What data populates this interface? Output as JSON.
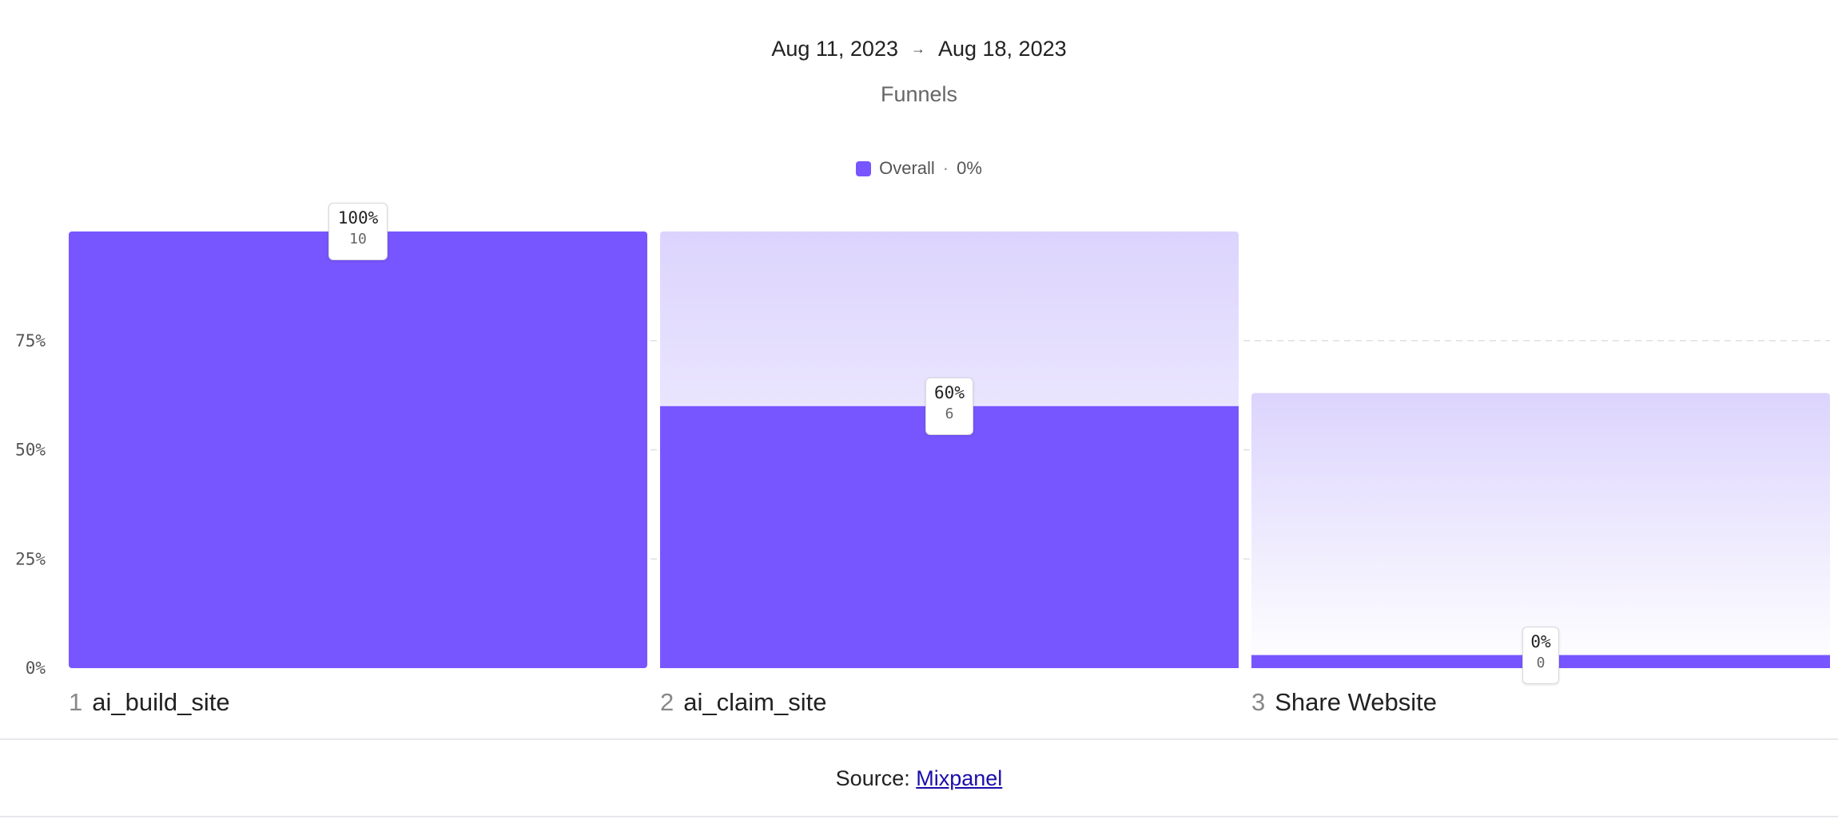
{
  "header": {
    "date_start": "Aug 11, 2023",
    "date_arrow": "→",
    "date_end": "Aug 18, 2023",
    "subtitle": "Funnels"
  },
  "legend": {
    "label": "Overall",
    "separator": "·",
    "value": "0%",
    "color": "#7856ff"
  },
  "colors": {
    "bar": "#7856ff",
    "ghost_top": "#dcd4fd",
    "ghost_bottom": "#ffffff",
    "grid": "#dfdfe6",
    "axis_text": "#555555"
  },
  "chart_data": {
    "type": "bar",
    "title": "Funnels",
    "ylim": [
      0,
      100
    ],
    "yticks": [
      "0%",
      "25%",
      "50%",
      "75%"
    ],
    "ytick_values": [
      0,
      25,
      50,
      75
    ],
    "grid": true,
    "legend_position": "top-center",
    "categories": [
      "ai_build_site",
      "ai_claim_site",
      "Share Website"
    ],
    "step_numbers": [
      "1",
      "2",
      "3"
    ],
    "values": [
      100,
      60,
      0
    ],
    "counts": [
      10,
      6,
      0
    ],
    "value_labels": [
      "100%",
      "60%",
      "0%"
    ],
    "count_labels": [
      "10",
      "6",
      "0"
    ],
    "ghost_values": [
      null,
      100,
      63
    ]
  },
  "footer": {
    "prefix": "Source:",
    "link_text": "Mixpanel"
  }
}
